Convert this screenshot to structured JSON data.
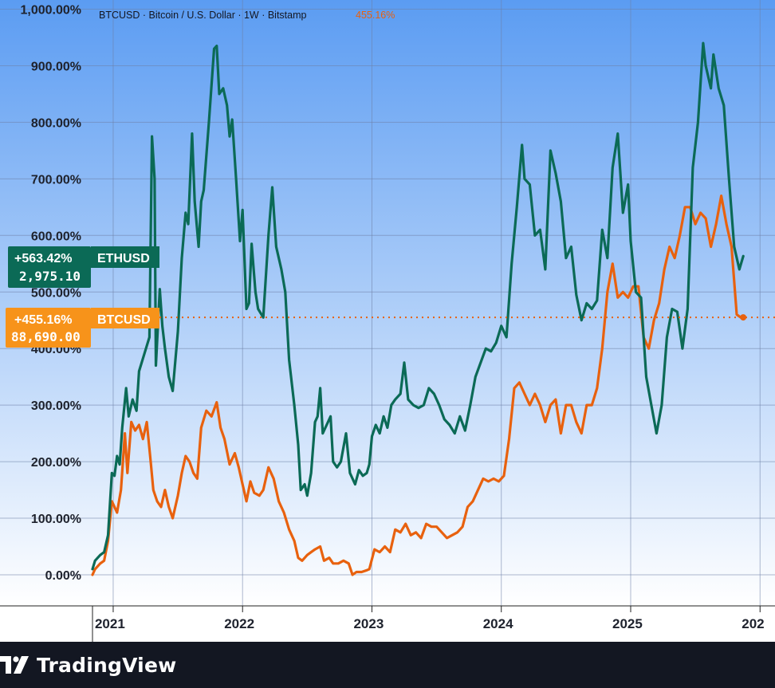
{
  "header": {
    "symbol": "BTCUSD",
    "description": "Bitcoin / U.S. Dollar",
    "interval": "1W",
    "exchange": "Bitstamp",
    "header_text": "BTCUSD · Bitcoin / U.S. Dollar · 1W · Bitstamp",
    "current_value": "455.16%"
  },
  "labels": {
    "eth": {
      "change": "+563.42%",
      "price": "2,975.10",
      "symbol": "ETHUSD"
    },
    "btc": {
      "change": "+455.16%",
      "price": "88,690.00",
      "symbol": "BTCUSD"
    }
  },
  "footer": {
    "brand": "TradingView"
  },
  "colors": {
    "eth": "#0b6a56",
    "btc": "#e8610e",
    "btc_label": "#f7931a",
    "bg_top": "#5b9cf2",
    "bg_bottom": "#ffffff",
    "grid": "#6d7fa6"
  },
  "chart_data": {
    "type": "line",
    "x_ticks": [
      "2021",
      "2022",
      "2023",
      "2024",
      "2025",
      "202"
    ],
    "y_ticks": [
      "0.00%",
      "100.00%",
      "200.00%",
      "300.00%",
      "400.00%",
      "500.00%",
      "600.00%",
      "700.00%",
      "800.00%",
      "900.00%",
      "1,000.00%"
    ],
    "ylim": [
      -55,
      1020
    ],
    "xlim": [
      2020.84,
      2025.98
    ],
    "grid": true,
    "series": [
      {
        "name": "ETHUSD",
        "color": "#0b6a56",
        "last_value": 563.42,
        "points": [
          [
            2020.84,
            10
          ],
          [
            2020.86,
            25
          ],
          [
            2020.9,
            35
          ],
          [
            2020.93,
            40
          ],
          [
            2020.96,
            70
          ],
          [
            2020.99,
            180
          ],
          [
            2021.01,
            175
          ],
          [
            2021.03,
            210
          ],
          [
            2021.05,
            195
          ],
          [
            2021.07,
            260
          ],
          [
            2021.1,
            330
          ],
          [
            2021.12,
            280
          ],
          [
            2021.15,
            310
          ],
          [
            2021.18,
            290
          ],
          [
            2021.2,
            360
          ],
          [
            2021.24,
            390
          ],
          [
            2021.28,
            420
          ],
          [
            2021.3,
            775
          ],
          [
            2021.32,
            700
          ],
          [
            2021.33,
            370
          ],
          [
            2021.36,
            505
          ],
          [
            2021.38,
            440
          ],
          [
            2021.4,
            400
          ],
          [
            2021.43,
            350
          ],
          [
            2021.46,
            325
          ],
          [
            2021.5,
            430
          ],
          [
            2021.53,
            560
          ],
          [
            2021.56,
            640
          ],
          [
            2021.58,
            620
          ],
          [
            2021.61,
            780
          ],
          [
            2021.63,
            660
          ],
          [
            2021.66,
            580
          ],
          [
            2021.68,
            660
          ],
          [
            2021.7,
            680
          ],
          [
            2021.74,
            800
          ],
          [
            2021.78,
            930
          ],
          [
            2021.8,
            935
          ],
          [
            2021.82,
            850
          ],
          [
            2021.85,
            860
          ],
          [
            2021.88,
            830
          ],
          [
            2021.9,
            775
          ],
          [
            2021.92,
            805
          ],
          [
            2021.95,
            700
          ],
          [
            2021.98,
            590
          ],
          [
            2022.0,
            645
          ],
          [
            2022.03,
            470
          ],
          [
            2022.05,
            480
          ],
          [
            2022.07,
            585
          ],
          [
            2022.1,
            500
          ],
          [
            2022.12,
            470
          ],
          [
            2022.16,
            455
          ],
          [
            2022.2,
            600
          ],
          [
            2022.23,
            685
          ],
          [
            2022.26,
            580
          ],
          [
            2022.3,
            540
          ],
          [
            2022.33,
            500
          ],
          [
            2022.36,
            380
          ],
          [
            2022.4,
            300
          ],
          [
            2022.43,
            230
          ],
          [
            2022.45,
            150
          ],
          [
            2022.48,
            160
          ],
          [
            2022.5,
            140
          ],
          [
            2022.53,
            180
          ],
          [
            2022.56,
            270
          ],
          [
            2022.58,
            280
          ],
          [
            2022.6,
            330
          ],
          [
            2022.62,
            250
          ],
          [
            2022.65,
            265
          ],
          [
            2022.68,
            280
          ],
          [
            2022.7,
            200
          ],
          [
            2022.73,
            190
          ],
          [
            2022.76,
            200
          ],
          [
            2022.8,
            250
          ],
          [
            2022.83,
            180
          ],
          [
            2022.87,
            160
          ],
          [
            2022.9,
            185
          ],
          [
            2022.93,
            175
          ],
          [
            2022.96,
            180
          ],
          [
            2022.98,
            195
          ],
          [
            2023.0,
            245
          ],
          [
            2023.03,
            265
          ],
          [
            2023.06,
            250
          ],
          [
            2023.09,
            280
          ],
          [
            2023.12,
            260
          ],
          [
            2023.15,
            300
          ],
          [
            2023.18,
            310
          ],
          [
            2023.22,
            320
          ],
          [
            2023.25,
            375
          ],
          [
            2023.28,
            310
          ],
          [
            2023.32,
            300
          ],
          [
            2023.36,
            295
          ],
          [
            2023.4,
            300
          ],
          [
            2023.44,
            330
          ],
          [
            2023.48,
            320
          ],
          [
            2023.52,
            300
          ],
          [
            2023.56,
            275
          ],
          [
            2023.6,
            265
          ],
          [
            2023.64,
            250
          ],
          [
            2023.68,
            280
          ],
          [
            2023.72,
            255
          ],
          [
            2023.76,
            300
          ],
          [
            2023.8,
            350
          ],
          [
            2023.84,
            375
          ],
          [
            2023.88,
            400
          ],
          [
            2023.92,
            395
          ],
          [
            2023.96,
            410
          ],
          [
            2024.0,
            440
          ],
          [
            2024.04,
            420
          ],
          [
            2024.08,
            550
          ],
          [
            2024.12,
            650
          ],
          [
            2024.16,
            760
          ],
          [
            2024.18,
            700
          ],
          [
            2024.22,
            690
          ],
          [
            2024.26,
            600
          ],
          [
            2024.3,
            610
          ],
          [
            2024.34,
            540
          ],
          [
            2024.38,
            750
          ],
          [
            2024.42,
            710
          ],
          [
            2024.46,
            660
          ],
          [
            2024.5,
            560
          ],
          [
            2024.54,
            580
          ],
          [
            2024.58,
            495
          ],
          [
            2024.62,
            450
          ],
          [
            2024.66,
            480
          ],
          [
            2024.7,
            470
          ],
          [
            2024.74,
            485
          ],
          [
            2024.78,
            610
          ],
          [
            2024.82,
            560
          ],
          [
            2024.86,
            720
          ],
          [
            2024.9,
            780
          ],
          [
            2024.94,
            640
          ],
          [
            2024.98,
            690
          ],
          [
            2025.0,
            590
          ],
          [
            2025.04,
            500
          ],
          [
            2025.08,
            490
          ],
          [
            2025.12,
            350
          ],
          [
            2025.16,
            300
          ],
          [
            2025.2,
            250
          ],
          [
            2025.24,
            300
          ],
          [
            2025.28,
            420
          ],
          [
            2025.32,
            470
          ],
          [
            2025.36,
            465
          ],
          [
            2025.4,
            400
          ],
          [
            2025.44,
            470
          ],
          [
            2025.48,
            720
          ],
          [
            2025.52,
            800
          ],
          [
            2025.56,
            940
          ],
          [
            2025.58,
            900
          ],
          [
            2025.62,
            860
          ],
          [
            2025.64,
            920
          ],
          [
            2025.68,
            860
          ],
          [
            2025.72,
            830
          ],
          [
            2025.76,
            700
          ],
          [
            2025.8,
            580
          ],
          [
            2025.84,
            540
          ],
          [
            2025.87,
            563.42
          ]
        ]
      },
      {
        "name": "BTCUSD",
        "color": "#e8610e",
        "last_value": 455.16,
        "points": [
          [
            2020.84,
            0
          ],
          [
            2020.86,
            10
          ],
          [
            2020.9,
            20
          ],
          [
            2020.93,
            25
          ],
          [
            2020.96,
            60
          ],
          [
            2020.99,
            130
          ],
          [
            2021.01,
            120
          ],
          [
            2021.03,
            110
          ],
          [
            2021.06,
            150
          ],
          [
            2021.09,
            250
          ],
          [
            2021.11,
            180
          ],
          [
            2021.14,
            270
          ],
          [
            2021.17,
            255
          ],
          [
            2021.2,
            265
          ],
          [
            2021.23,
            240
          ],
          [
            2021.26,
            270
          ],
          [
            2021.29,
            200
          ],
          [
            2021.31,
            150
          ],
          [
            2021.34,
            130
          ],
          [
            2021.37,
            120
          ],
          [
            2021.4,
            150
          ],
          [
            2021.43,
            120
          ],
          [
            2021.46,
            100
          ],
          [
            2021.5,
            140
          ],
          [
            2021.53,
            180
          ],
          [
            2021.56,
            210
          ],
          [
            2021.59,
            200
          ],
          [
            2021.62,
            180
          ],
          [
            2021.65,
            170
          ],
          [
            2021.68,
            260
          ],
          [
            2021.72,
            290
          ],
          [
            2021.76,
            280
          ],
          [
            2021.8,
            305
          ],
          [
            2021.83,
            260
          ],
          [
            2021.86,
            240
          ],
          [
            2021.9,
            195
          ],
          [
            2021.94,
            215
          ],
          [
            2021.97,
            190
          ],
          [
            2022.0,
            160
          ],
          [
            2022.03,
            130
          ],
          [
            2022.06,
            165
          ],
          [
            2022.09,
            145
          ],
          [
            2022.13,
            140
          ],
          [
            2022.16,
            150
          ],
          [
            2022.2,
            190
          ],
          [
            2022.24,
            170
          ],
          [
            2022.28,
            130
          ],
          [
            2022.32,
            110
          ],
          [
            2022.36,
            80
          ],
          [
            2022.4,
            60
          ],
          [
            2022.43,
            30
          ],
          [
            2022.46,
            25
          ],
          [
            2022.5,
            35
          ],
          [
            2022.53,
            40
          ],
          [
            2022.56,
            45
          ],
          [
            2022.6,
            50
          ],
          [
            2022.63,
            25
          ],
          [
            2022.67,
            30
          ],
          [
            2022.7,
            20
          ],
          [
            2022.74,
            20
          ],
          [
            2022.78,
            25
          ],
          [
            2022.82,
            20
          ],
          [
            2022.85,
            0
          ],
          [
            2022.88,
            5
          ],
          [
            2022.92,
            5
          ],
          [
            2022.96,
            8
          ],
          [
            2022.98,
            10
          ],
          [
            2023.02,
            45
          ],
          [
            2023.06,
            40
          ],
          [
            2023.1,
            50
          ],
          [
            2023.14,
            40
          ],
          [
            2023.18,
            80
          ],
          [
            2023.22,
            75
          ],
          [
            2023.26,
            90
          ],
          [
            2023.3,
            70
          ],
          [
            2023.34,
            75
          ],
          [
            2023.38,
            65
          ],
          [
            2023.42,
            90
          ],
          [
            2023.46,
            85
          ],
          [
            2023.5,
            85
          ],
          [
            2023.54,
            75
          ],
          [
            2023.58,
            65
          ],
          [
            2023.62,
            70
          ],
          [
            2023.66,
            75
          ],
          [
            2023.7,
            85
          ],
          [
            2023.74,
            120
          ],
          [
            2023.78,
            130
          ],
          [
            2023.82,
            150
          ],
          [
            2023.86,
            170
          ],
          [
            2023.9,
            165
          ],
          [
            2023.94,
            170
          ],
          [
            2023.98,
            165
          ],
          [
            2024.02,
            175
          ],
          [
            2024.06,
            240
          ],
          [
            2024.1,
            330
          ],
          [
            2024.14,
            340
          ],
          [
            2024.18,
            320
          ],
          [
            2024.22,
            300
          ],
          [
            2024.26,
            320
          ],
          [
            2024.3,
            300
          ],
          [
            2024.34,
            270
          ],
          [
            2024.38,
            300
          ],
          [
            2024.42,
            310
          ],
          [
            2024.46,
            250
          ],
          [
            2024.5,
            300
          ],
          [
            2024.54,
            300
          ],
          [
            2024.58,
            270
          ],
          [
            2024.62,
            250
          ],
          [
            2024.66,
            300
          ],
          [
            2024.7,
            300
          ],
          [
            2024.74,
            330
          ],
          [
            2024.78,
            400
          ],
          [
            2024.82,
            500
          ],
          [
            2024.86,
            550
          ],
          [
            2024.9,
            490
          ],
          [
            2024.94,
            500
          ],
          [
            2024.98,
            490
          ],
          [
            2025.02,
            510
          ],
          [
            2025.06,
            510
          ],
          [
            2025.1,
            420
          ],
          [
            2025.14,
            400
          ],
          [
            2025.18,
            450
          ],
          [
            2025.22,
            480
          ],
          [
            2025.26,
            540
          ],
          [
            2025.3,
            580
          ],
          [
            2025.34,
            560
          ],
          [
            2025.38,
            600
          ],
          [
            2025.42,
            650
          ],
          [
            2025.46,
            650
          ],
          [
            2025.5,
            620
          ],
          [
            2025.54,
            640
          ],
          [
            2025.58,
            630
          ],
          [
            2025.62,
            580
          ],
          [
            2025.66,
            620
          ],
          [
            2025.7,
            670
          ],
          [
            2025.74,
            620
          ],
          [
            2025.78,
            580
          ],
          [
            2025.82,
            460
          ],
          [
            2025.85,
            455.16
          ],
          [
            2025.87,
            455.16
          ]
        ]
      }
    ]
  }
}
